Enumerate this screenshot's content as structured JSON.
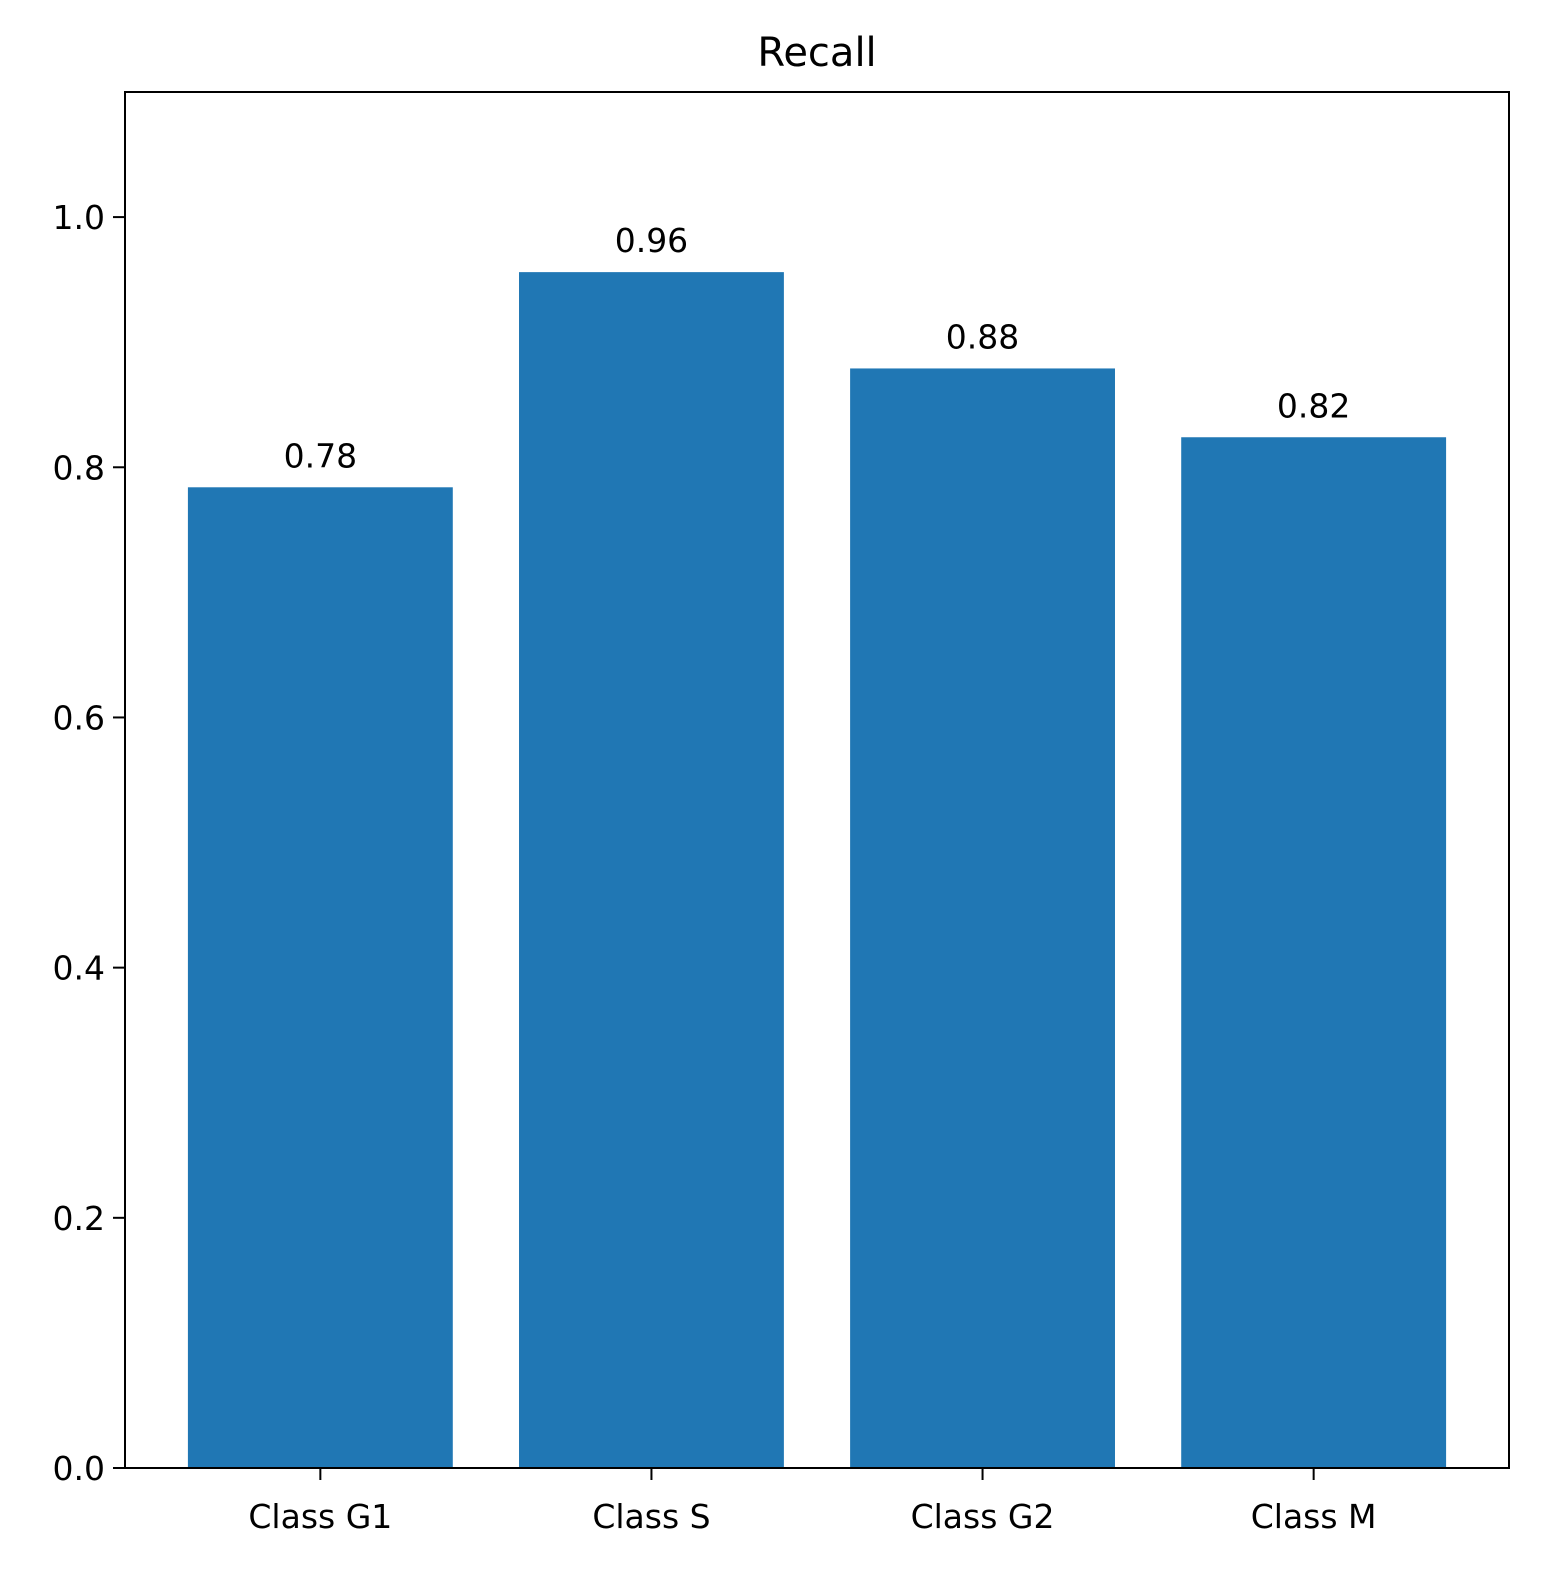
{
  "chart_data": {
    "type": "bar",
    "title": "Recall",
    "xlabel": "",
    "ylabel": "",
    "categories": [
      "Class G1",
      "Class S",
      "Class G2",
      "Class M"
    ],
    "values": [
      0.784,
      0.956,
      0.879,
      0.824
    ],
    "value_labels": [
      "0.78",
      "0.96",
      "0.88",
      "0.82"
    ],
    "ylim": [
      0.0,
      1.1
    ],
    "yticks": [
      0.0,
      0.2,
      0.4,
      0.6,
      0.8,
      1.0
    ],
    "ytick_labels": [
      "0.0",
      "0.2",
      "0.4",
      "0.6",
      "0.8",
      "1.0"
    ],
    "grid": false,
    "bar_color": "#2077b4"
  }
}
